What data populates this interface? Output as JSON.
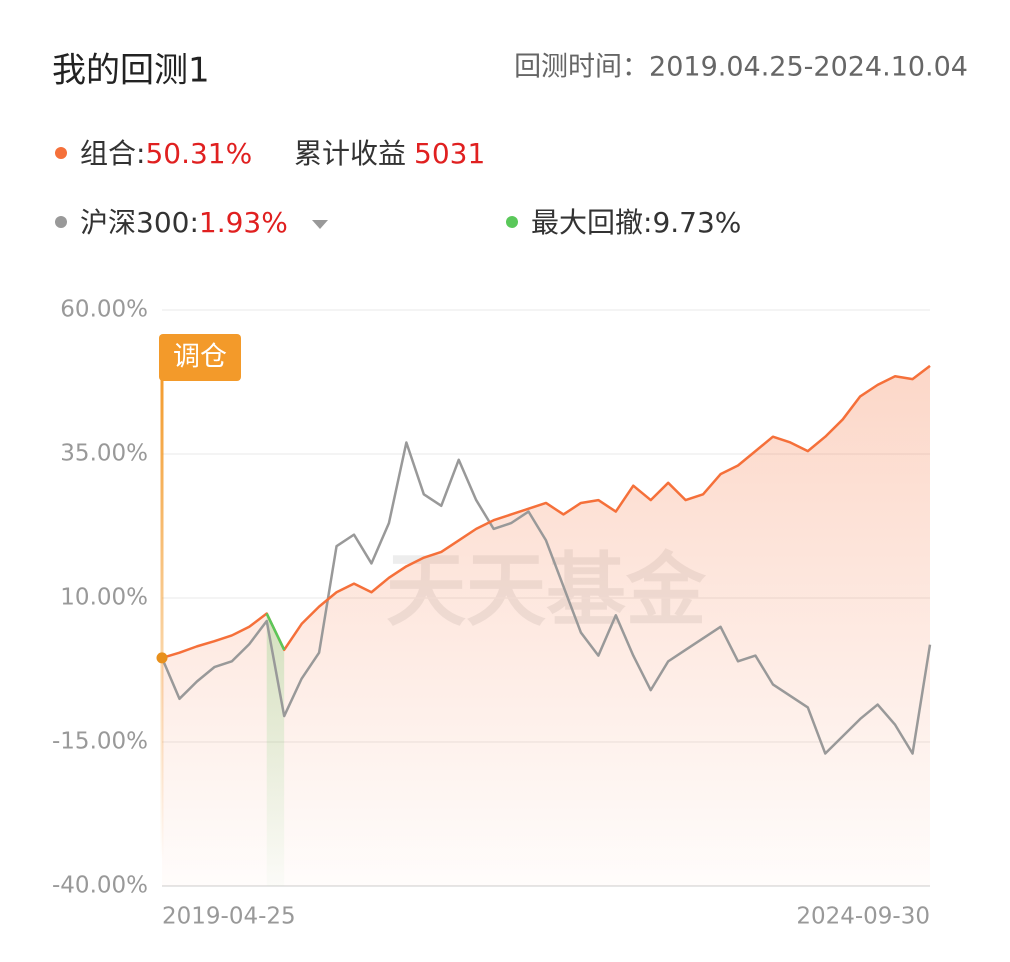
{
  "header": {
    "title": "我的回测1",
    "period": "回测时间：2019.04.25-2024.10.04"
  },
  "profit": {
    "label": "累计收益",
    "value": "5031"
  },
  "chart_data": {
    "type": "line",
    "watermark": "天天基金",
    "annotation": "调仓",
    "categories": [
      "2019-04-25",
      null,
      null,
      null,
      null,
      null,
      null,
      null,
      null,
      null,
      null,
      null,
      null,
      null,
      null,
      null,
      null,
      null,
      null,
      null,
      null,
      null,
      null,
      null,
      null,
      null,
      null,
      null,
      null,
      null,
      null,
      null,
      null,
      null,
      null,
      null,
      null,
      null,
      null,
      null,
      null,
      null,
      null,
      null,
      "2024-09-30"
    ],
    "series": [
      {
        "name": "组合:",
        "color": "#f5703a",
        "return_label": "50.31%",
        "fill": true,
        "values": [
          -0.4,
          0.5,
          1.6,
          2.5,
          3.5,
          5.0,
          7.3,
          1.0,
          5.5,
          8.5,
          11.0,
          12.5,
          11.0,
          13.5,
          15.5,
          17.0,
          18.0,
          20.0,
          22.0,
          23.5,
          24.5,
          25.5,
          26.5,
          24.5,
          26.5,
          27.0,
          25.0,
          29.5,
          27.0,
          30.0,
          27.0,
          28.0,
          31.5,
          33.0,
          35.5,
          38.0,
          37.0,
          35.5,
          38.0,
          41.0,
          45.0,
          47.0,
          48.5,
          48.0,
          50.3
        ]
      },
      {
        "name": "沪深300:",
        "color": "#999999",
        "return_label": "1.93%",
        "fill": false,
        "values": [
          -0.4,
          -7.5,
          -4.5,
          -2.0,
          -1.0,
          2.0,
          6.0,
          -10.5,
          -4.0,
          0.5,
          19.0,
          21.0,
          16.0,
          23.0,
          37.0,
          28.0,
          26.0,
          34.0,
          27.0,
          22.0,
          23.0,
          25.0,
          20.0,
          12.0,
          4.0,
          0.0,
          7.0,
          0.0,
          -6.0,
          -1.0,
          1.0,
          3.0,
          5.0,
          -1.0,
          0.0,
          -5.0,
          -7.0,
          -9.0,
          -17.0,
          -14.0,
          -11.0,
          -8.5,
          -12.0,
          -17.0,
          1.9
        ]
      },
      {
        "name": "最大回撤:",
        "color": "#5ac85a",
        "return_label": "9.73%",
        "fill": true,
        "values": [
          null,
          null,
          null,
          null,
          null,
          null,
          7.3,
          1.0,
          null,
          null,
          null,
          null,
          null,
          null,
          null,
          null,
          null,
          null,
          null,
          null,
          null,
          null,
          null,
          null,
          null,
          null,
          null,
          null,
          null,
          null,
          null,
          null,
          null,
          null,
          null,
          null,
          null,
          null,
          null,
          null,
          null,
          null,
          null,
          null,
          null
        ]
      }
    ],
    "ylim": [
      -40,
      60
    ],
    "yticks": [
      {
        "value": 60,
        "label": "60.00%"
      },
      {
        "value": 35,
        "label": "35.00%"
      },
      {
        "value": 10,
        "label": "10.00%"
      },
      {
        "value": -15,
        "label": "-15.00%"
      },
      {
        "value": -40,
        "label": "-40.00%"
      }
    ],
    "grid": true
  }
}
